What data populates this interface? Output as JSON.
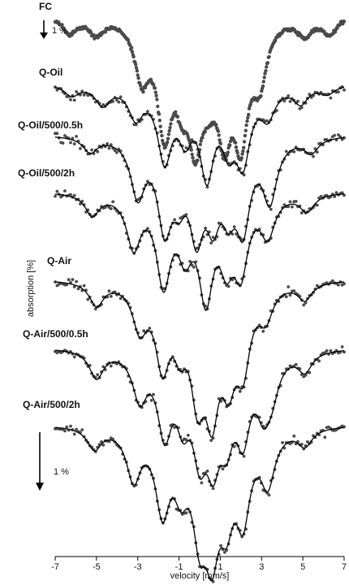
{
  "chart_data": {
    "type": "scatter",
    "title": "",
    "xlabel": "velocity [mm/s]",
    "ylabel": "absorption [%]",
    "xlim": [
      -7,
      7
    ],
    "xticks": [
      "-7",
      "-5",
      "-3",
      "-1",
      "1",
      "3",
      "5",
      "7"
    ],
    "scale_bars": [
      {
        "label": "1 %",
        "position": "top-left"
      },
      {
        "label": "1 %",
        "position": "lower-left"
      }
    ],
    "series": [
      {
        "name": "FC",
        "fit_line": false,
        "lines": [
          {
            "pos": -6.3,
            "depth": 0.8
          },
          {
            "pos": -5.0,
            "depth": 0.8
          },
          {
            "pos": -2.8,
            "depth": 2.6
          },
          {
            "pos": -1.7,
            "depth": 4.9
          },
          {
            "pos": -0.85,
            "depth": 2.5
          },
          {
            "pos": -0.2,
            "depth": 4.8
          },
          {
            "pos": 0.45,
            "depth": 2.0
          },
          {
            "pos": 1.2,
            "depth": 4.6
          },
          {
            "pos": 2.0,
            "depth": 5.0
          },
          {
            "pos": 2.9,
            "depth": 2.6
          },
          {
            "pos": 5.1,
            "depth": 0.8
          },
          {
            "pos": 6.3,
            "depth": 0.8
          }
        ]
      },
      {
        "name": "Q-Oil",
        "fit_line": true,
        "lines": [
          {
            "pos": -6.2,
            "depth": 0.5
          },
          {
            "pos": -4.7,
            "depth": 0.9
          },
          {
            "pos": -3.1,
            "depth": 1.4
          },
          {
            "pos": -1.7,
            "depth": 3.3
          },
          {
            "pos": -0.7,
            "depth": 2.0
          },
          {
            "pos": 0.35,
            "depth": 3.9
          },
          {
            "pos": 1.4,
            "depth": 2.3
          },
          {
            "pos": 2.1,
            "depth": 3.2
          },
          {
            "pos": 3.3,
            "depth": 1.3
          },
          {
            "pos": 4.9,
            "depth": 0.8
          },
          {
            "pos": 6.2,
            "depth": 0.4
          }
        ]
      },
      {
        "name": "Q-Oil/500/0.5h",
        "fit_line": true,
        "lines": [
          {
            "pos": -5.3,
            "depth": 0.7
          },
          {
            "pos": -3.0,
            "depth": 2.6
          },
          {
            "pos": -1.7,
            "depth": 3.8
          },
          {
            "pos": -1.0,
            "depth": 2.0
          },
          {
            "pos": -0.15,
            "depth": 3.9
          },
          {
            "pos": 0.65,
            "depth": 3.0
          },
          {
            "pos": 1.4,
            "depth": 2.5
          },
          {
            "pos": 2.1,
            "depth": 3.7
          },
          {
            "pos": 3.4,
            "depth": 2.8
          },
          {
            "pos": 5.4,
            "depth": 0.7
          }
        ]
      },
      {
        "name": "Q-Oil/500/2h",
        "fit_line": true,
        "lines": [
          {
            "pos": -5.2,
            "depth": 1.0
          },
          {
            "pos": -3.2,
            "depth": 2.4
          },
          {
            "pos": -1.75,
            "depth": 4.0
          },
          {
            "pos": -0.7,
            "depth": 2.3
          },
          {
            "pos": 0.3,
            "depth": 4.5
          },
          {
            "pos": 1.3,
            "depth": 2.6
          },
          {
            "pos": 2.0,
            "depth": 3.2
          },
          {
            "pos": 3.3,
            "depth": 1.8
          },
          {
            "pos": 5.2,
            "depth": 0.8
          }
        ]
      },
      {
        "name": "Q-Air",
        "fit_line": true,
        "lines": [
          {
            "pos": -5.0,
            "depth": 1.1
          },
          {
            "pos": -2.9,
            "depth": 2.0
          },
          {
            "pos": -1.8,
            "depth": 3.5
          },
          {
            "pos": -0.95,
            "depth": 2.2
          },
          {
            "pos": -0.1,
            "depth": 4.4
          },
          {
            "pos": 0.6,
            "depth": 5.0
          },
          {
            "pos": 1.4,
            "depth": 3.5
          },
          {
            "pos": 2.1,
            "depth": 3.4
          },
          {
            "pos": 3.2,
            "depth": 1.4
          },
          {
            "pos": 5.1,
            "depth": 0.8
          }
        ]
      },
      {
        "name": "Q-Air/500/0.5h",
        "fit_line": true,
        "lines": [
          {
            "pos": -5.0,
            "depth": 1.3
          },
          {
            "pos": -2.9,
            "depth": 2.1
          },
          {
            "pos": -1.7,
            "depth": 3.5
          },
          {
            "pos": -0.8,
            "depth": 2.5
          },
          {
            "pos": 0.0,
            "depth": 3.8
          },
          {
            "pos": 0.65,
            "depth": 3.9
          },
          {
            "pos": 1.3,
            "depth": 3.0
          },
          {
            "pos": 2.1,
            "depth": 3.4
          },
          {
            "pos": 3.1,
            "depth": 2.2
          },
          {
            "pos": 3.5,
            "depth": 1.4
          },
          {
            "pos": 5.1,
            "depth": 0.9
          }
        ]
      },
      {
        "name": "Q-Air/500/2h",
        "fit_line": true,
        "lines": [
          {
            "pos": -5.1,
            "depth": 1.0
          },
          {
            "pos": -3.2,
            "depth": 2.3
          },
          {
            "pos": -1.8,
            "depth": 3.6
          },
          {
            "pos": -0.9,
            "depth": 2.2
          },
          {
            "pos": 0.0,
            "depth": 4.0
          },
          {
            "pos": 0.6,
            "depth": 4.6
          },
          {
            "pos": 1.3,
            "depth": 3.2
          },
          {
            "pos": 2.1,
            "depth": 3.7
          },
          {
            "pos": 3.3,
            "depth": 2.4
          },
          {
            "pos": 5.1,
            "depth": 0.8
          }
        ]
      }
    ],
    "colors": {
      "points": "#4a4a4a",
      "fit": "#000000",
      "axis": "#000000"
    }
  }
}
